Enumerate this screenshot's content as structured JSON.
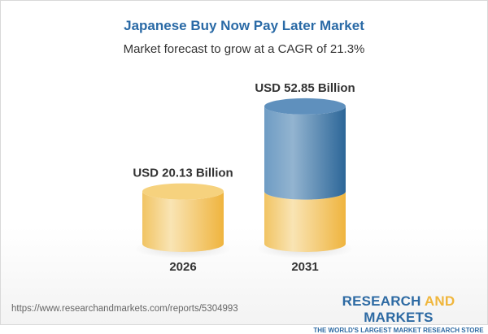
{
  "chart_data": {
    "type": "bar",
    "style": "3d-cylinder",
    "title": "Japanese Buy Now Pay Later Market",
    "subtitle": "Market forecast to grow at a CAGR of 21.3%",
    "categories": [
      "2026",
      "2031"
    ],
    "values": [
      20.13,
      52.85
    ],
    "data_labels": [
      "USD 20.13 Billion",
      "USD 52.85 Billion"
    ],
    "unit": "USD Billion",
    "colors": {
      "base": "#f2c15a",
      "growth": "#3f7ab0",
      "title": "#2a6aa6"
    },
    "grid": false
  },
  "footer": {
    "url": "https://www.researchandmarkets.com/reports/5304993",
    "logo_part1": "RESEARCH ",
    "logo_part2": "AND",
    "logo_part3": " MARKETS",
    "tagline": "THE WORLD'S LARGEST MARKET RESEARCH STORE"
  }
}
